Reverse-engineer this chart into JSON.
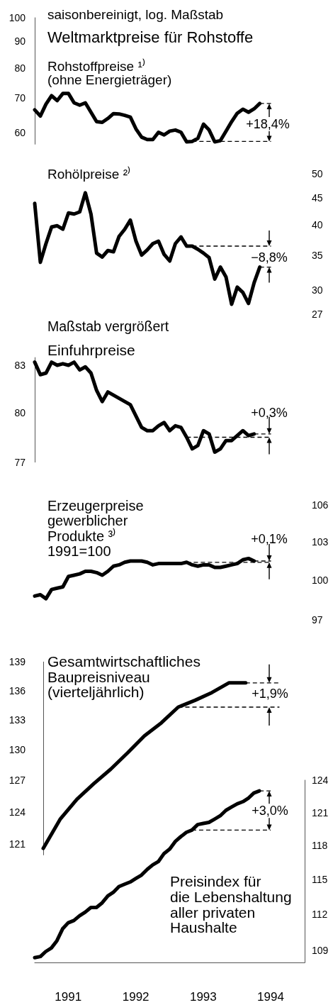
{
  "chart_data": [
    {
      "type": "line",
      "title": "Weltmarktpreise für Rohstoffe",
      "subtitle": "Rohstoffpreise ¹⁾\n(ohne Energieträger)",
      "annotations": [
        "saisonbereinigt, log. Maßstab",
        "+18,4%"
      ],
      "log": true,
      "tick_labels": "y",
      "ylim": [
        57,
        100
      ],
      "yticks": [
        60,
        70,
        80,
        90,
        100
      ],
      "categories": [
        null,
        null,
        null,
        null,
        null,
        null,
        null,
        null,
        null,
        null,
        null,
        null,
        null,
        null,
        null,
        null,
        null,
        null,
        null,
        null,
        null,
        null,
        null,
        null,
        null,
        null,
        null,
        null,
        null,
        null,
        null,
        null,
        null,
        null,
        null,
        null,
        null,
        null,
        null,
        null,
        null,
        null,
        null
      ],
      "series": [
        {
          "color": "#000000",
          "values": [
            66.4,
            64.6,
            68.1,
            70.7,
            69.2,
            71.4,
            71.4,
            68.5,
            67.8,
            68.5,
            65.7,
            63.0,
            62.8,
            63.9,
            65.3,
            65.2,
            64.8,
            64.3,
            61.0,
            58.8,
            58.2,
            58.2,
            60.1,
            59.4,
            60.4,
            60.7,
            60.1,
            57.6,
            57.7,
            58.5,
            62.3,
            60.7,
            57.6,
            57.9,
            60.4,
            63.0,
            65.4,
            66.6,
            65.7,
            66.7,
            68.3,
            null,
            null
          ]
        },
        {
          "color": "#000000",
          "line_style": "dashed",
          "values": [
            null,
            null,
            null,
            null,
            null,
            null,
            null,
            null,
            null,
            null,
            null,
            null,
            null,
            null,
            null,
            null,
            null,
            null,
            null,
            null,
            null,
            null,
            null,
            null,
            null,
            null,
            null,
            null,
            57.7,
            57.7,
            57.7,
            57.7,
            57.7,
            57.7,
            57.7,
            57.7,
            57.7,
            57.7,
            57.7,
            57.7,
            57.7,
            57.7,
            57.7
          ]
        },
        {
          "color": "#000000",
          "line_style": "dashed",
          "values": [
            null,
            null,
            null,
            null,
            null,
            null,
            null,
            null,
            null,
            null,
            null,
            null,
            null,
            null,
            null,
            null,
            null,
            null,
            null,
            null,
            null,
            null,
            null,
            null,
            null,
            null,
            null,
            null,
            null,
            null,
            null,
            null,
            null,
            null,
            null,
            null,
            null,
            null,
            null,
            null,
            68.3,
            68.3,
            68.3
          ]
        }
      ]
    },
    {
      "type": "line",
      "title": "Rohölpreise ²⁾",
      "annotations": [
        "−8,8%"
      ],
      "log": true,
      "tick_labels": "y",
      "ylim": [
        27,
        50
      ],
      "yticks": [
        27,
        30,
        35,
        40,
        45,
        50
      ],
      "categories": [
        null,
        null,
        null,
        null,
        null,
        null,
        null,
        null,
        null,
        null,
        null,
        null,
        null,
        null,
        null,
        null,
        null,
        null,
        null,
        null,
        null,
        null,
        null,
        null,
        null,
        null,
        null,
        null,
        null,
        null,
        null,
        null,
        null,
        null,
        null,
        null,
        null,
        null,
        null,
        null,
        null,
        null,
        null
      ],
      "series": [
        {
          "color": "#000000",
          "values": [
            43.9,
            33.9,
            36.8,
            39.6,
            39.8,
            39.2,
            42.1,
            41.9,
            42.3,
            46.0,
            41.9,
            35.3,
            34.7,
            35.7,
            35.5,
            38.0,
            39.2,
            40.8,
            37.2,
            35.0,
            35.8,
            36.8,
            37.2,
            35.1,
            34.1,
            36.8,
            37.9,
            36.4,
            36.4,
            35.9,
            35.3,
            34.6,
            31.5,
            33.2,
            31.8,
            28.2,
            30.4,
            29.7,
            28.3,
            31.0,
            33.2,
            null,
            null
          ]
        },
        {
          "color": "#000000",
          "line_style": "dashed",
          "values": [
            null,
            null,
            null,
            null,
            null,
            null,
            null,
            null,
            null,
            null,
            null,
            null,
            null,
            null,
            null,
            null,
            null,
            null,
            null,
            null,
            null,
            null,
            null,
            null,
            null,
            null,
            null,
            null,
            36.4,
            36.4,
            36.4,
            36.4,
            36.4,
            36.4,
            36.4,
            36.4,
            36.4,
            36.4,
            36.4,
            36.4,
            36.4,
            36.4,
            36.4
          ]
        },
        {
          "color": "#000000",
          "line_style": "dashed",
          "values": [
            null,
            null,
            null,
            null,
            null,
            null,
            null,
            null,
            null,
            null,
            null,
            null,
            null,
            null,
            null,
            null,
            null,
            null,
            null,
            null,
            null,
            null,
            null,
            null,
            null,
            null,
            null,
            null,
            null,
            null,
            null,
            null,
            null,
            null,
            null,
            null,
            null,
            null,
            null,
            null,
            33.2,
            33.2,
            33.2
          ]
        }
      ]
    },
    {
      "type": "line",
      "title": "Einfuhrpreise",
      "annotations": [
        "Maßstab vergrößert",
        "+0,3%"
      ],
      "log": true,
      "tick_labels": "y",
      "ylim": [
        77,
        83.5
      ],
      "yticks": [
        77,
        80,
        83
      ],
      "categories": [
        null,
        null,
        null,
        null,
        null,
        null,
        null,
        null,
        null,
        null,
        null,
        null,
        null,
        null,
        null,
        null,
        null,
        null,
        null,
        null,
        null,
        null,
        null,
        null,
        null,
        null,
        null,
        null,
        null,
        null,
        null,
        null,
        null,
        null,
        null,
        null,
        null,
        null,
        null,
        null,
        null,
        null,
        null
      ],
      "series": [
        {
          "color": "#000000",
          "values": [
            83.2,
            82.4,
            82.5,
            83.2,
            83.0,
            83.1,
            83.0,
            83.2,
            82.7,
            82.9,
            82.5,
            81.4,
            80.7,
            81.3,
            81.1,
            80.9,
            80.7,
            80.5,
            79.8,
            79.1,
            78.9,
            78.9,
            79.2,
            79.4,
            78.9,
            79.2,
            79.1,
            78.5,
            77.8,
            78.0,
            78.9,
            78.7,
            77.6,
            77.8,
            78.3,
            78.3,
            78.6,
            78.9,
            78.6,
            78.7,
            null,
            null,
            null
          ]
        },
        {
          "color": "#000000",
          "line_style": "dashed",
          "values": [
            null,
            null,
            null,
            null,
            null,
            null,
            null,
            null,
            null,
            null,
            null,
            null,
            null,
            null,
            null,
            null,
            null,
            null,
            null,
            null,
            null,
            null,
            null,
            null,
            null,
            null,
            null,
            78.5,
            78.5,
            78.5,
            78.5,
            78.5,
            78.5,
            78.5,
            78.5,
            78.5,
            78.5,
            78.5,
            78.5,
            78.5,
            78.5,
            78.5,
            78.5
          ]
        },
        {
          "color": "#000000",
          "line_style": "dashed",
          "values": [
            null,
            null,
            null,
            null,
            null,
            null,
            null,
            null,
            null,
            null,
            null,
            null,
            null,
            null,
            null,
            null,
            null,
            null,
            null,
            null,
            null,
            null,
            null,
            null,
            null,
            null,
            null,
            null,
            null,
            null,
            null,
            null,
            null,
            null,
            null,
            null,
            null,
            null,
            null,
            78.7,
            78.7,
            78.7,
            78.7
          ]
        }
      ]
    },
    {
      "type": "line",
      "title": "Erzeugerpreise\ngewerblicher\nProdukte ³⁾\n1991=100",
      "annotations": [
        "+0,1%"
      ],
      "log": true,
      "tick_labels": "y",
      "ylim": [
        97,
        106
      ],
      "yticks": [
        97,
        100,
        103,
        106
      ],
      "categories": [
        null,
        null,
        null,
        null,
        null,
        null,
        null,
        null,
        null,
        null,
        null,
        null,
        null,
        null,
        null,
        null,
        null,
        null,
        null,
        null,
        null,
        null,
        null,
        null,
        null,
        null,
        null,
        null,
        null,
        null,
        null,
        null,
        null,
        null,
        null,
        null,
        null,
        null,
        null,
        null,
        null,
        null,
        null
      ],
      "series": [
        {
          "color": "#000000",
          "values": [
            98.8,
            98.9,
            98.6,
            99.3,
            99.4,
            99.5,
            100.3,
            100.4,
            100.5,
            100.7,
            100.7,
            100.6,
            100.4,
            100.7,
            101.1,
            101.2,
            101.4,
            101.5,
            101.5,
            101.5,
            101.4,
            101.2,
            101.3,
            101.3,
            101.3,
            101.3,
            101.3,
            101.4,
            101.2,
            101.1,
            101.2,
            101.2,
            101.0,
            101.0,
            101.1,
            101.2,
            101.3,
            101.6,
            101.7,
            101.5,
            null,
            null,
            null
          ]
        },
        {
          "color": "#000000",
          "line_style": "dashed",
          "values": [
            null,
            null,
            null,
            null,
            null,
            null,
            null,
            null,
            null,
            null,
            null,
            null,
            null,
            null,
            null,
            null,
            null,
            null,
            null,
            null,
            null,
            null,
            null,
            null,
            null,
            null,
            null,
            101.4,
            101.4,
            101.4,
            101.4,
            101.4,
            101.4,
            101.4,
            101.4,
            101.4,
            101.4,
            101.4,
            101.4,
            101.4,
            101.4,
            101.4,
            101.4
          ]
        },
        {
          "color": "#000000",
          "line_style": "dashed",
          "values": [
            null,
            null,
            null,
            null,
            null,
            null,
            null,
            null,
            null,
            null,
            null,
            null,
            null,
            null,
            null,
            null,
            null,
            null,
            null,
            null,
            null,
            null,
            null,
            null,
            null,
            null,
            null,
            null,
            null,
            null,
            null,
            null,
            null,
            null,
            null,
            null,
            null,
            null,
            null,
            101.5,
            101.5,
            101.5,
            101.5
          ]
        }
      ]
    },
    {
      "type": "line",
      "title": "Gesamtwirtschaftliches\nBaupreisniveau\n(vierteljährlich)",
      "annotations": [
        "+1,9%"
      ],
      "log": true,
      "tick_labels": "y",
      "ylim": [
        120,
        139
      ],
      "yticks": [
        121,
        124,
        127,
        130,
        133,
        136,
        139
      ],
      "categories": [
        null,
        null,
        null,
        null,
        null,
        null,
        null,
        null,
        null,
        null,
        null,
        null,
        null,
        null,
        null
      ],
      "series": [
        {
          "color": "#000000",
          "values": [
            120.6,
            123.3,
            125.2,
            126.7,
            128.1,
            129.7,
            131.4,
            132.7,
            134.3,
            135.0,
            135.8,
            136.8,
            136.8,
            null,
            null
          ]
        },
        {
          "color": "#000000",
          "line_style": "dashed",
          "values": [
            null,
            null,
            null,
            null,
            null,
            null,
            null,
            null,
            134.3,
            134.3,
            134.3,
            134.3,
            134.3,
            134.3,
            134.3
          ]
        },
        {
          "color": "#000000",
          "line_style": "dashed",
          "values": [
            null,
            null,
            null,
            null,
            null,
            null,
            null,
            null,
            null,
            null,
            null,
            null,
            136.8,
            136.8,
            136.8
          ]
        }
      ]
    },
    {
      "type": "line",
      "title": "Preisindex für\ndie Lebenshaltung\naller privaten\nHaushalte",
      "annotations": [
        "+3,0%"
      ],
      "log": true,
      "xlim": [
        "1991-01",
        "1995-01"
      ],
      "xticks": [
        {
          "value": "1991-07",
          "label": "1991"
        },
        {
          "value": "1992-07",
          "label": "1992"
        },
        {
          "value": "1993-07",
          "label": "1993"
        },
        {
          "value": "1994-07",
          "label": "1994"
        }
      ],
      "ylim": [
        108,
        124
      ],
      "yticks": [
        109,
        112,
        115,
        118,
        121,
        124
      ],
      "x": [
        "1991-01",
        "1991-02",
        "1991-03",
        "1991-04",
        "1991-05",
        "1991-06",
        "1991-07",
        "1991-08",
        "1991-09",
        "1991-10",
        "1991-11",
        "1991-12",
        "1992-01",
        "1992-02",
        "1992-03",
        "1992-04",
        "1992-05",
        "1992-06",
        "1992-07",
        "1992-08",
        "1992-09",
        "1992-10",
        "1992-11",
        "1992-12",
        "1993-01",
        "1993-02",
        "1993-03",
        "1993-04",
        "1993-05",
        "1993-06",
        "1993-07",
        "1993-08",
        "1993-09",
        "1993-10",
        "1993-11",
        "1993-12",
        "1994-01",
        "1994-02",
        "1994-03",
        "1994-04",
        "1994-05"
      ],
      "series": [
        {
          "color": "#000000",
          "values": [
            108.4,
            108.5,
            108.9,
            109.2,
            109.8,
            110.8,
            111.3,
            111.5,
            111.9,
            112.2,
            112.6,
            112.6,
            113.0,
            113.6,
            113.9,
            114.4,
            114.6,
            114.8,
            115.1,
            115.4,
            115.9,
            116.3,
            116.6,
            117.3,
            117.7,
            118.4,
            118.8,
            119.2,
            119.4,
            119.9,
            120.0,
            120.1,
            120.4,
            120.7,
            121.2,
            121.5,
            121.8,
            122.0,
            122.3,
            122.8,
            123.0
          ]
        },
        {
          "color": "#000000",
          "line_style": "dashed",
          "x": [
            "1993-05",
            "1994-07"
          ],
          "values": [
            119.4,
            119.4
          ]
        },
        {
          "color": "#000000",
          "line_style": "dashed",
          "x": [
            "1994-05",
            "1994-07"
          ],
          "values": [
            123.0,
            123.0
          ]
        }
      ]
    }
  ]
}
